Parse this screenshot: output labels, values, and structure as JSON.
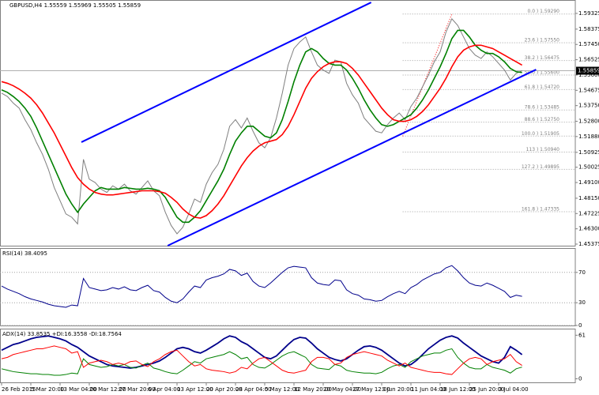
{
  "chart_data": [
    {
      "type": "line",
      "title": "GBPUSD,H4 1.55559 1.55969 1.55505 1.55859",
      "ylim": [
        1.4528,
        1.6004
      ],
      "yticks": [
        1.59325,
        1.58375,
        {
          "value": 1.5745,
          "label": "1.57450"
        },
        1.56525,
        {
          "value": 1.556,
          "label": "1.55600"
        },
        1.54675,
        {
          "value": 1.5375,
          "label": "1.53750"
        },
        {
          "value": 1.528,
          "label": "1.52800"
        },
        {
          "value": 1.5188,
          "label": "1.51880"
        },
        1.50925,
        1.50025,
        {
          "value": 1.491,
          "label": "1.49100"
        },
        {
          "value": 1.4815,
          "label": "1.48150"
        },
        1.47225,
        {
          "value": 1.463,
          "label": "1.46300"
        },
        1.45375
      ],
      "current_price": 1.55859,
      "series": [
        {
          "color": "#7f7f7f",
          "values": [
            1.545,
            1.543,
            1.539,
            1.536,
            1.529,
            1.523,
            1.515,
            1.508,
            1.499,
            1.488,
            1.48,
            1.472,
            1.47,
            1.466,
            1.505,
            1.493,
            1.491,
            1.487,
            1.485,
            1.489,
            1.487,
            1.49,
            1.486,
            1.484,
            1.488,
            1.492,
            1.486,
            1.483,
            1.473,
            1.465,
            1.46,
            1.464,
            1.472,
            1.481,
            1.479,
            1.49,
            1.497,
            1.502,
            1.511,
            1.525,
            1.529,
            1.524,
            1.53,
            1.522,
            1.515,
            1.512,
            1.518,
            1.53,
            1.545,
            1.562,
            1.572,
            1.576,
            1.579,
            1.57,
            1.562,
            1.559,
            1.557,
            1.565,
            1.564,
            1.551,
            1.544,
            1.539,
            1.53,
            1.526,
            1.522,
            1.521,
            1.526,
            1.53,
            1.533,
            1.529,
            1.537,
            1.542,
            1.549,
            1.556,
            1.564,
            1.57,
            1.582,
            1.59,
            1.586,
            1.579,
            1.572,
            1.568,
            1.566,
            1.57,
            1.567,
            1.563,
            1.559,
            1.553,
            1.557,
            1.5586
          ]
        },
        {
          "color": "#008000",
          "values": [
            1.547,
            1.5455,
            1.543,
            1.54,
            1.536,
            1.531,
            1.524,
            1.516,
            1.508,
            1.5,
            1.492,
            1.484,
            1.478,
            1.473,
            1.478,
            1.482,
            1.486,
            1.488,
            1.487,
            1.487,
            1.487,
            1.488,
            1.4875,
            1.487,
            1.487,
            1.4875,
            1.487,
            1.486,
            1.482,
            1.476,
            1.47,
            1.467,
            1.467,
            1.47,
            1.474,
            1.48,
            1.486,
            1.492,
            1.499,
            1.508,
            1.516,
            1.521,
            1.525,
            1.525,
            1.522,
            1.519,
            1.518,
            1.521,
            1.529,
            1.54,
            1.552,
            1.562,
            1.57,
            1.572,
            1.57,
            1.566,
            1.563,
            1.562,
            1.562,
            1.559,
            1.554,
            1.548,
            1.541,
            1.535,
            1.53,
            1.526,
            1.525,
            1.526,
            1.528,
            1.53,
            1.532,
            1.536,
            1.541,
            1.547,
            1.554,
            1.561,
            1.569,
            1.578,
            1.583,
            1.583,
            1.579,
            1.574,
            1.571,
            1.569,
            1.569,
            1.567,
            1.564,
            1.56,
            1.558,
            1.5575
          ]
        },
        {
          "color": "#ff0000",
          "values": [
            1.552,
            1.551,
            1.5495,
            1.5475,
            1.545,
            1.542,
            1.538,
            1.533,
            1.527,
            1.521,
            1.514,
            1.507,
            1.5,
            1.494,
            1.49,
            1.487,
            1.485,
            1.484,
            1.4835,
            1.4835,
            1.484,
            1.4845,
            1.485,
            1.4855,
            1.486,
            1.486,
            1.486,
            1.4855,
            1.4845,
            1.482,
            1.479,
            1.475,
            1.472,
            1.47,
            1.4695,
            1.471,
            1.474,
            1.478,
            1.483,
            1.489,
            1.495,
            1.501,
            1.506,
            1.51,
            1.513,
            1.515,
            1.516,
            1.517,
            1.52,
            1.525,
            1.532,
            1.54,
            1.548,
            1.554,
            1.558,
            1.561,
            1.563,
            1.564,
            1.564,
            1.563,
            1.56,
            1.556,
            1.551,
            1.546,
            1.541,
            1.536,
            1.532,
            1.529,
            1.528,
            1.528,
            1.529,
            1.531,
            1.534,
            1.538,
            1.543,
            1.548,
            1.554,
            1.561,
            1.567,
            1.571,
            1.573,
            1.574,
            1.574,
            1.573,
            1.572,
            1.57,
            1.568,
            1.566,
            1.564,
            1.562
          ]
        }
      ],
      "trendlines": [
        {
          "color": "#0000ff",
          "x": [
            13.65,
            63.2
          ],
          "y": [
            1.5154,
            1.5999
          ]
        },
        {
          "color": "#0000ff",
          "x": [
            28.4,
            91.4
          ],
          "y": [
            1.4528,
            1.5593
          ]
        }
      ],
      "fibonacci": {
        "color": "#a0a0a0",
        "anchor_color": "#ff0000",
        "anchor_x": [
          68.6,
          77
        ],
        "anchor_y": [
          1.519,
          1.5929
        ],
        "levels": [
          {
            "value": 1.5929,
            "label": "0.0 ) 1.59290"
          },
          {
            "value": 1.5755,
            "label": "23.6 ) 1.57550"
          },
          {
            "value": 1.56475,
            "label": "38.2 ) 1.56475"
          },
          {
            "value": 1.556,
            "label": "50.0 ) 1.55600"
          },
          {
            "value": 1.5472,
            "label": "61.8 ) 1.54720"
          },
          {
            "value": 1.53485,
            "label": "78.6 ) 1.53485"
          },
          {
            "value": 1.5275,
            "label": "88.6 ) 1.52750"
          },
          {
            "value": 1.51905,
            "label": "100.0 ) 1.51905"
          },
          {
            "value": 1.5094,
            "label": "113 ) 1.50940"
          },
          {
            "value": 1.49895,
            "label": "127.2 ) 1.49895"
          },
          {
            "value": 1.47335,
            "label": "161.8 ) 1.47335"
          }
        ]
      }
    },
    {
      "type": "line",
      "title": "RSI(14) 38.4095",
      "ylim": [
        0,
        100
      ],
      "yticks": [
        0,
        30,
        70
      ],
      "grid": true,
      "series": [
        {
          "color": "#00008b",
          "values": [
            52,
            48,
            45,
            42,
            38,
            35,
            33,
            31,
            28,
            26,
            25,
            24,
            27,
            26,
            62,
            50,
            48,
            46,
            47,
            50,
            48,
            51,
            47,
            46,
            50,
            53,
            46,
            44,
            37,
            32,
            30,
            35,
            44,
            52,
            50,
            60,
            63,
            65,
            68,
            74,
            72,
            66,
            69,
            58,
            52,
            50,
            56,
            63,
            70,
            76,
            78,
            77,
            76,
            63,
            56,
            54,
            53,
            60,
            59,
            47,
            42,
            40,
            35,
            34,
            32,
            33,
            38,
            42,
            45,
            42,
            50,
            54,
            60,
            64,
            68,
            70,
            76,
            79,
            72,
            63,
            56,
            53,
            52,
            56,
            53,
            49,
            45,
            37,
            40,
            38.4095
          ]
        }
      ]
    },
    {
      "type": "line",
      "title": "ADX(14) 33.8535 +DI:16.3558 -DI:18.7564",
      "ylim": [
        -5,
        68
      ],
      "yticks": [
        0,
        61
      ],
      "categories": [
        "26 Feb 2015",
        null,
        null,
        null,
        null,
        "5 Mar 20:00",
        null,
        null,
        null,
        null,
        "13 Mar 04:00",
        null,
        null,
        null,
        null,
        "20 Mar 12:00",
        null,
        null,
        null,
        null,
        "27 Mar 20:00",
        null,
        null,
        null,
        null,
        "6 Apr 04:00",
        null,
        null,
        null,
        null,
        "13 Apr 12:00",
        null,
        null,
        null,
        null,
        "20 Apr 20:00",
        null,
        null,
        null,
        null,
        "28 Apr 04:00",
        null,
        null,
        null,
        null,
        "5 May 12:00",
        null,
        null,
        null,
        null,
        "12 May 20:00",
        null,
        null,
        null,
        null,
        "20 May 04:00",
        null,
        null,
        null,
        null,
        "27 May 12:00",
        null,
        null,
        null,
        null,
        "3 Jun 20:00",
        null,
        null,
        null,
        null,
        "11 Jun 04:00",
        null,
        null,
        null,
        null,
        "18 Jun 12:00",
        null,
        null,
        null,
        null,
        "25 Jun 20:00",
        null,
        null,
        null,
        null,
        "3 Jul 04:00",
        null,
        null,
        null,
        null
      ],
      "series": [
        {
          "color": "#00008b",
          "values": [
            40,
            44,
            48,
            50,
            53,
            56,
            58,
            59,
            60,
            58,
            56,
            53,
            48,
            44,
            38,
            32,
            28,
            24,
            20,
            18,
            17,
            16,
            15,
            16,
            18,
            20,
            22,
            25,
            30,
            36,
            42,
            44,
            42,
            38,
            36,
            40,
            45,
            50,
            56,
            60,
            58,
            52,
            48,
            42,
            36,
            30,
            28,
            32,
            40,
            48,
            55,
            58,
            57,
            50,
            42,
            36,
            30,
            27,
            25,
            28,
            34,
            40,
            45,
            46,
            44,
            40,
            34,
            28,
            22,
            18,
            20,
            26,
            34,
            42,
            48,
            54,
            58,
            60,
            57,
            50,
            44,
            38,
            32,
            28,
            24,
            22,
            30,
            45,
            40,
            33.8535
          ]
        },
        {
          "color": "#008000",
          "values": [
            14,
            12,
            10,
            9,
            8,
            7,
            7,
            6,
            6,
            5,
            5,
            6,
            8,
            7,
            28,
            20,
            18,
            16,
            17,
            20,
            18,
            20,
            16,
            15,
            19,
            22,
            15,
            13,
            10,
            8,
            7,
            12,
            18,
            24,
            22,
            28,
            30,
            32,
            34,
            38,
            34,
            28,
            30,
            20,
            16,
            15,
            20,
            26,
            32,
            36,
            38,
            34,
            30,
            20,
            15,
            14,
            13,
            20,
            18,
            12,
            10,
            9,
            8,
            8,
            7,
            9,
            14,
            18,
            20,
            16,
            24,
            28,
            32,
            34,
            36,
            36,
            40,
            42,
            30,
            22,
            16,
            14,
            14,
            20,
            16,
            14,
            12,
            8,
            14,
            16.3558
          ]
        },
        {
          "color": "#ff0000",
          "values": [
            28,
            30,
            34,
            36,
            38,
            40,
            42,
            42,
            44,
            46,
            44,
            42,
            36,
            38,
            16,
            22,
            24,
            26,
            24,
            20,
            22,
            20,
            24,
            25,
            20,
            17,
            24,
            28,
            34,
            38,
            40,
            32,
            24,
            18,
            20,
            14,
            12,
            11,
            10,
            8,
            10,
            16,
            14,
            22,
            28,
            30,
            24,
            18,
            12,
            9,
            8,
            10,
            12,
            24,
            30,
            30,
            28,
            20,
            22,
            30,
            34,
            36,
            38,
            36,
            34,
            32,
            26,
            22,
            18,
            22,
            16,
            14,
            12,
            10,
            9,
            9,
            7,
            6,
            14,
            22,
            28,
            30,
            28,
            20,
            24,
            26,
            28,
            34,
            24,
            18.7564
          ]
        }
      ]
    }
  ]
}
